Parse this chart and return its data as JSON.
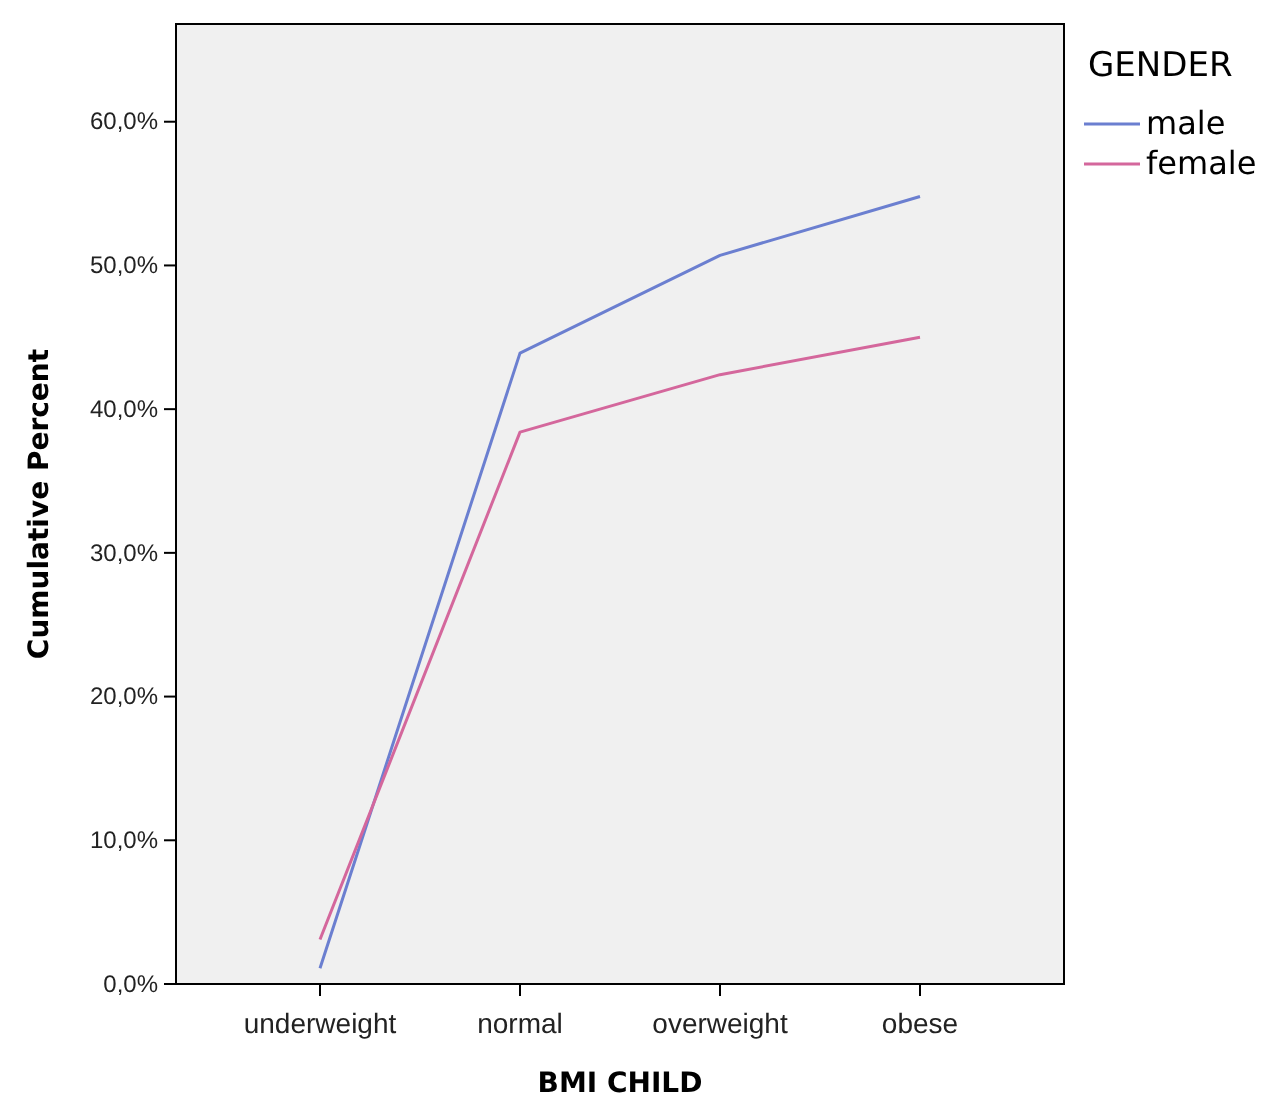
{
  "chart_data": {
    "type": "line",
    "xlabel": "BMI CHILD",
    "ylabel": "Cumulative Percent",
    "legend_title": "GENDER",
    "legend": "top right",
    "grid": false,
    "categories": [
      "underweight",
      "normal",
      "overweight",
      "obese"
    ],
    "series": [
      {
        "name": "male",
        "color": "#6b7fd0",
        "values": [
          1.1,
          43.9,
          50.7,
          54.8
        ]
      },
      {
        "name": "female",
        "color": "#d4679c",
        "values": [
          3.1,
          38.4,
          42.4,
          45.0
        ]
      }
    ],
    "ylim": [
      0,
      66.8
    ],
    "yticks": [
      {
        "value": 0,
        "label": "0,0%"
      },
      {
        "value": 10,
        "label": "10,0%"
      },
      {
        "value": 20,
        "label": "20,0%"
      },
      {
        "value": 30,
        "label": "30,0%"
      },
      {
        "value": 40,
        "label": "40,0%"
      },
      {
        "value": 50,
        "label": "50,0%"
      },
      {
        "value": 60,
        "label": "60,0%"
      }
    ]
  }
}
